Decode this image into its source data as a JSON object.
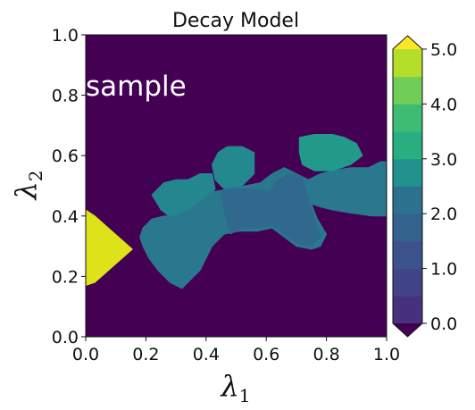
{
  "chart_data": {
    "type": "heatmap",
    "subtype": "filled-contour",
    "title": "Decay Model",
    "xlabel": "λ1",
    "ylabel": "λ2",
    "xlim": [
      0.0,
      1.0
    ],
    "ylim": [
      0.0,
      1.0
    ],
    "x_ticks": [
      "0.0",
      "0.2",
      "0.4",
      "0.6",
      "0.8",
      "1.0"
    ],
    "y_ticks": [
      "0.0",
      "0.2",
      "0.4",
      "0.6",
      "0.8",
      "1.0"
    ],
    "annotation": "sample",
    "background_value": 0.0,
    "colormap": "viridis",
    "colorbar": {
      "range": [
        0.0,
        5.0
      ],
      "levels": [
        0.0,
        0.5,
        1.0,
        1.5,
        2.0,
        2.5,
        3.0,
        3.5,
        4.0,
        4.5,
        5.0
      ],
      "tick_labels": [
        "0.0",
        "1.0",
        "2.0",
        "3.0",
        "4.0",
        "5.0"
      ],
      "extend": "both",
      "band_colors": [
        "#46317e",
        "#414487",
        "#3b528b",
        "#33638d",
        "#2c728e",
        "#21918c",
        "#28ae80",
        "#3fbc73",
        "#6ece58",
        "#b5de2b"
      ],
      "under_color": "#440154",
      "over_color": "#fde725"
    },
    "regions": [
      {
        "id": "left-peak",
        "value": 5.0,
        "color": "#dde318",
        "outline": [
          [
            0.0,
            0.42
          ],
          [
            0.03,
            0.4
          ],
          [
            0.155,
            0.29
          ],
          [
            0.03,
            0.18
          ],
          [
            0.0,
            0.17
          ]
        ]
      },
      {
        "id": "blob-a",
        "value": 2.8,
        "color": "#24868e",
        "outline": [
          [
            0.22,
            0.47
          ],
          [
            0.26,
            0.51
          ],
          [
            0.3,
            0.52
          ],
          [
            0.34,
            0.52
          ],
          [
            0.38,
            0.54
          ],
          [
            0.42,
            0.54
          ],
          [
            0.43,
            0.49
          ],
          [
            0.4,
            0.45
          ],
          [
            0.36,
            0.42
          ],
          [
            0.32,
            0.4
          ],
          [
            0.29,
            0.39
          ],
          [
            0.25,
            0.42
          ]
        ]
      },
      {
        "id": "blob-b",
        "value": 3.0,
        "color": "#23898e",
        "outline": [
          [
            0.42,
            0.57
          ],
          [
            0.44,
            0.61
          ],
          [
            0.47,
            0.63
          ],
          [
            0.52,
            0.63
          ],
          [
            0.56,
            0.61
          ],
          [
            0.56,
            0.54
          ],
          [
            0.52,
            0.5
          ],
          [
            0.46,
            0.49
          ],
          [
            0.43,
            0.52
          ]
        ]
      },
      {
        "id": "main-band",
        "value": 2.5,
        "color": "#2a788e",
        "outline": [
          [
            0.19,
            0.36
          ],
          [
            0.22,
            0.39
          ],
          [
            0.26,
            0.4
          ],
          [
            0.3,
            0.4
          ],
          [
            0.36,
            0.43
          ],
          [
            0.42,
            0.48
          ],
          [
            0.48,
            0.49
          ],
          [
            0.53,
            0.5
          ],
          [
            0.58,
            0.51
          ],
          [
            0.62,
            0.54
          ],
          [
            0.66,
            0.56
          ],
          [
            0.7,
            0.54
          ],
          [
            0.74,
            0.52
          ],
          [
            0.78,
            0.54
          ],
          [
            0.82,
            0.55
          ],
          [
            0.88,
            0.56
          ],
          [
            0.94,
            0.56
          ],
          [
            0.98,
            0.58
          ],
          [
            1.0,
            0.58
          ],
          [
            1.0,
            0.4
          ],
          [
            0.95,
            0.4
          ],
          [
            0.88,
            0.41
          ],
          [
            0.82,
            0.42
          ],
          [
            0.78,
            0.43
          ],
          [
            0.75,
            0.44
          ],
          [
            0.77,
            0.39
          ],
          [
            0.8,
            0.34
          ],
          [
            0.78,
            0.3
          ],
          [
            0.75,
            0.29
          ],
          [
            0.7,
            0.3
          ],
          [
            0.66,
            0.33
          ],
          [
            0.62,
            0.36
          ],
          [
            0.57,
            0.35
          ],
          [
            0.51,
            0.35
          ],
          [
            0.46,
            0.34
          ],
          [
            0.42,
            0.3
          ],
          [
            0.38,
            0.22
          ],
          [
            0.35,
            0.19
          ],
          [
            0.32,
            0.16
          ],
          [
            0.28,
            0.18
          ],
          [
            0.24,
            0.22
          ],
          [
            0.21,
            0.26
          ],
          [
            0.19,
            0.3
          ],
          [
            0.18,
            0.33
          ]
        ]
      },
      {
        "id": "mid-lower",
        "value": 2.2,
        "color": "#31688e",
        "outline": [
          [
            0.45,
            0.48
          ],
          [
            0.5,
            0.49
          ],
          [
            0.55,
            0.49
          ],
          [
            0.61,
            0.48
          ],
          [
            0.64,
            0.52
          ],
          [
            0.68,
            0.54
          ],
          [
            0.72,
            0.53
          ],
          [
            0.74,
            0.46
          ],
          [
            0.76,
            0.39
          ],
          [
            0.78,
            0.33
          ],
          [
            0.75,
            0.3
          ],
          [
            0.7,
            0.31
          ],
          [
            0.66,
            0.34
          ],
          [
            0.62,
            0.37
          ],
          [
            0.57,
            0.36
          ],
          [
            0.52,
            0.36
          ],
          [
            0.48,
            0.34
          ],
          [
            0.47,
            0.38
          ],
          [
            0.46,
            0.42
          ]
        ]
      },
      {
        "id": "upper-right",
        "value": 3.2,
        "color": "#229a8a",
        "outline": [
          [
            0.71,
            0.66
          ],
          [
            0.76,
            0.67
          ],
          [
            0.82,
            0.67
          ],
          [
            0.86,
            0.66
          ],
          [
            0.9,
            0.64
          ],
          [
            0.92,
            0.6
          ],
          [
            0.88,
            0.57
          ],
          [
            0.82,
            0.55
          ],
          [
            0.76,
            0.55
          ],
          [
            0.72,
            0.57
          ],
          [
            0.71,
            0.61
          ]
        ]
      }
    ]
  }
}
